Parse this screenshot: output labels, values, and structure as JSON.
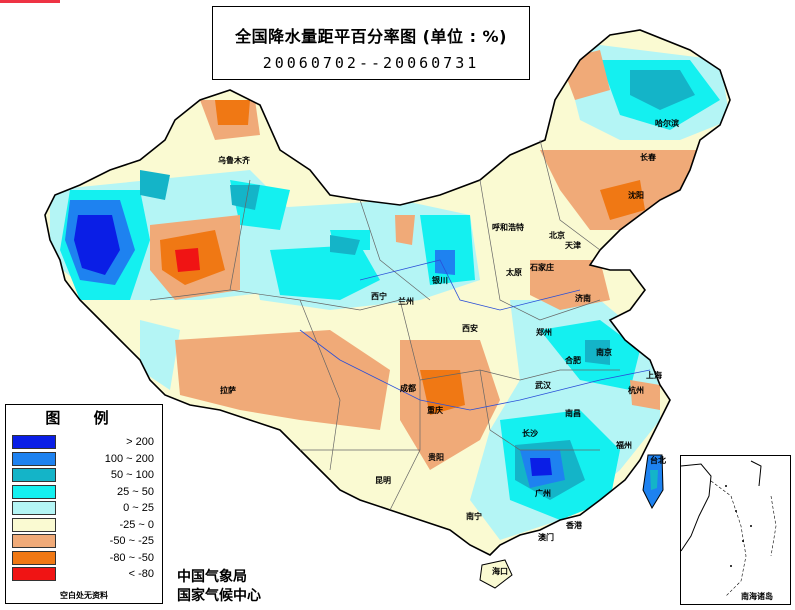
{
  "title": "全国降水量距平百分率图 (单位 : %)",
  "period": "20060702--20060731",
  "legend": {
    "title": "图 例",
    "items": [
      {
        "label": "> 200",
        "color": "#0a1ee6"
      },
      {
        "label": "100 ~ 200",
        "color": "#1e82f0"
      },
      {
        "label": "50 ~ 100",
        "color": "#14b4c8"
      },
      {
        "label": "25 ~ 50",
        "color": "#14f0f0"
      },
      {
        "label": "0 ~ 25",
        "color": "#b4f5f5"
      },
      {
        "label": "-25 ~ 0",
        "color": "#fafad2"
      },
      {
        "label": "-50 ~ -25",
        "color": "#f0aa78"
      },
      {
        "label": "-80 ~ -50",
        "color": "#f07814"
      },
      {
        "label": "< -80",
        "color": "#f01414"
      }
    ],
    "note": "空白处无资料"
  },
  "credits": [
    "中国气象局",
    "国家气候中心"
  ],
  "inset_label": "南海诸岛",
  "cities": [
    {
      "name": "乌鲁木齐"
    },
    {
      "name": "哈尔滨"
    },
    {
      "name": "长春"
    },
    {
      "name": "沈阳"
    },
    {
      "name": "呼和浩特"
    },
    {
      "name": "北京"
    },
    {
      "name": "天津"
    },
    {
      "name": "太原"
    },
    {
      "name": "石家庄"
    },
    {
      "name": "银川"
    },
    {
      "name": "西宁"
    },
    {
      "name": "兰州"
    },
    {
      "name": "济南"
    },
    {
      "name": "郑州"
    },
    {
      "name": "西安"
    },
    {
      "name": "合肥"
    },
    {
      "name": "南京"
    },
    {
      "name": "上海"
    },
    {
      "name": "武汉"
    },
    {
      "name": "成都"
    },
    {
      "name": "拉萨"
    },
    {
      "name": "重庆"
    },
    {
      "name": "杭州"
    },
    {
      "name": "南昌"
    },
    {
      "name": "长沙"
    },
    {
      "name": "贵阳"
    },
    {
      "name": "福州"
    },
    {
      "name": "台北"
    },
    {
      "name": "昆明"
    },
    {
      "name": "广州"
    },
    {
      "name": "南宁"
    },
    {
      "name": "香港"
    },
    {
      "name": "澳门"
    },
    {
      "name": "海口"
    }
  ]
}
